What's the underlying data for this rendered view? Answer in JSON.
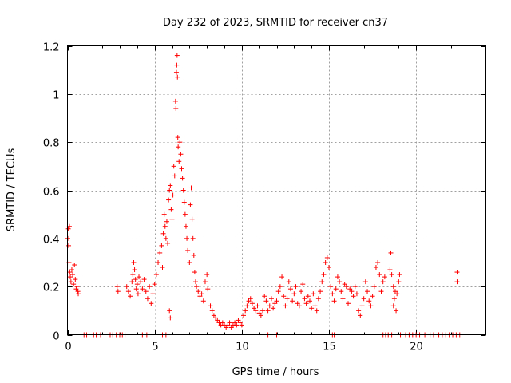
{
  "chart_data": {
    "type": "scatter",
    "title": "Day 232 of 2023, SRMTID for receiver cn37",
    "xlabel": "GPS time / hours",
    "ylabel": "SRMTID / TECUs",
    "xlim": [
      0,
      24
    ],
    "ylim": [
      0,
      1.2
    ],
    "grid": true,
    "marker": "+",
    "color": "#ff0000",
    "x_ticks": [
      0,
      5,
      10,
      15,
      20
    ],
    "y_ticks": [
      0,
      0.2,
      0.4,
      0.6,
      0.8,
      1.0,
      1.2
    ],
    "x_tick_labels": [
      "0",
      "5",
      "10",
      "15",
      "20"
    ],
    "y_tick_labels": [
      "0",
      "0.2",
      "0.4",
      "0.6",
      "0.8",
      "1",
      "1.2"
    ],
    "series": [
      {
        "name": "cn37",
        "points": [
          [
            0.02,
            0.4
          ],
          [
            0.05,
            0.44
          ],
          [
            0.07,
            0.37
          ],
          [
            0.09,
            0.3
          ],
          [
            0.11,
            0.45
          ],
          [
            0.13,
            0.26
          ],
          [
            0.16,
            0.24
          ],
          [
            0.2,
            0.22
          ],
          [
            0.25,
            0.27
          ],
          [
            0.3,
            0.25
          ],
          [
            0.35,
            0.21
          ],
          [
            0.4,
            0.29
          ],
          [
            0.45,
            0.23
          ],
          [
            0.5,
            0.19
          ],
          [
            0.55,
            0.2
          ],
          [
            0.6,
            0.18
          ],
          [
            0.62,
            0.17
          ],
          [
            0.95,
            0
          ],
          [
            1.1,
            0
          ],
          [
            1.5,
            0
          ],
          [
            1.65,
            0
          ],
          [
            1.9,
            0
          ],
          [
            2.45,
            0
          ],
          [
            2.6,
            0
          ],
          [
            2.8,
            0
          ],
          [
            3.0,
            0
          ],
          [
            3.15,
            0
          ],
          [
            3.3,
            0
          ],
          [
            2.85,
            0.2
          ],
          [
            2.9,
            0.18
          ],
          [
            3.4,
            0.2
          ],
          [
            3.5,
            0.18
          ],
          [
            3.6,
            0.16
          ],
          [
            3.7,
            0.22
          ],
          [
            3.75,
            0.25
          ],
          [
            3.8,
            0.3
          ],
          [
            3.85,
            0.27
          ],
          [
            3.9,
            0.23
          ],
          [
            3.95,
            0.19
          ],
          [
            4.0,
            0.21
          ],
          [
            4.05,
            0.17
          ],
          [
            4.1,
            0.24
          ],
          [
            4.2,
            0.22
          ],
          [
            4.3,
            0.19
          ],
          [
            4.4,
            0.23
          ],
          [
            4.5,
            0.18
          ],
          [
            4.6,
            0.15
          ],
          [
            4.7,
            0.2
          ],
          [
            4.8,
            0.13
          ],
          [
            4.9,
            0.17
          ],
          [
            5.0,
            0.21
          ],
          [
            4.3,
            0
          ],
          [
            4.55,
            0
          ],
          [
            5.45,
            0
          ],
          [
            5.65,
            0
          ],
          [
            5.1,
            0.25
          ],
          [
            5.2,
            0.3
          ],
          [
            5.3,
            0.34
          ],
          [
            5.4,
            0.37
          ],
          [
            5.45,
            0.28
          ],
          [
            5.5,
            0.42
          ],
          [
            5.55,
            0.5
          ],
          [
            5.6,
            0.45
          ],
          [
            5.65,
            0.4
          ],
          [
            5.7,
            0.47
          ],
          [
            5.75,
            0.38
          ],
          [
            5.8,
            0.56
          ],
          [
            5.85,
            0.6
          ],
          [
            5.9,
            0.62
          ],
          [
            5.95,
            0.52
          ],
          [
            6.0,
            0.48
          ],
          [
            6.05,
            0.58
          ],
          [
            6.1,
            0.7
          ],
          [
            6.15,
            0.66
          ],
          [
            6.2,
            0.97
          ],
          [
            6.22,
            0.94
          ],
          [
            6.25,
            1.09
          ],
          [
            6.27,
            1.12
          ],
          [
            6.29,
            1.16
          ],
          [
            6.31,
            1.07
          ],
          [
            6.33,
            0.82
          ],
          [
            6.35,
            0.78
          ],
          [
            6.4,
            0.72
          ],
          [
            6.45,
            0.8
          ],
          [
            6.5,
            0.75
          ],
          [
            6.55,
            0.69
          ],
          [
            6.6,
            0.65
          ],
          [
            6.65,
            0.6
          ],
          [
            6.7,
            0.55
          ],
          [
            6.75,
            0.5
          ],
          [
            6.8,
            0.45
          ],
          [
            6.85,
            0.4
          ],
          [
            6.9,
            0.35
          ],
          [
            7.0,
            0.3
          ],
          [
            7.05,
            0.54
          ],
          [
            7.1,
            0.61
          ],
          [
            7.15,
            0.48
          ],
          [
            7.2,
            0.4
          ],
          [
            7.25,
            0.33
          ],
          [
            7.3,
            0.26
          ],
          [
            7.35,
            0.22
          ],
          [
            7.4,
            0.2
          ],
          [
            7.5,
            0.18
          ],
          [
            7.6,
            0.16
          ],
          [
            7.7,
            0.17
          ],
          [
            7.8,
            0.14
          ],
          [
            7.9,
            0.22
          ],
          [
            8.0,
            0.25
          ],
          [
            8.05,
            0.19
          ],
          [
            5.85,
            0.1
          ],
          [
            5.9,
            0.07
          ],
          [
            8.2,
            0.12
          ],
          [
            8.3,
            0.1
          ],
          [
            8.4,
            0.08
          ],
          [
            8.5,
            0.07
          ],
          [
            8.6,
            0.06
          ],
          [
            8.7,
            0.05
          ],
          [
            8.8,
            0.04
          ],
          [
            8.9,
            0.05
          ],
          [
            9.0,
            0.04
          ],
          [
            9.1,
            0.03
          ],
          [
            9.2,
            0.04
          ],
          [
            9.3,
            0.05
          ],
          [
            9.4,
            0.03
          ],
          [
            9.5,
            0.04
          ],
          [
            9.6,
            0.05
          ],
          [
            9.7,
            0.04
          ],
          [
            9.8,
            0.06
          ],
          [
            9.9,
            0.05
          ],
          [
            10.0,
            0.04
          ],
          [
            10.1,
            0.08
          ],
          [
            10.2,
            0.1
          ],
          [
            10.3,
            0.12
          ],
          [
            10.4,
            0.14
          ],
          [
            10.5,
            0.15
          ],
          [
            10.6,
            0.13
          ],
          [
            10.7,
            0.11
          ],
          [
            10.8,
            0.1
          ],
          [
            10.9,
            0.12
          ],
          [
            11.0,
            0.09
          ],
          [
            11.1,
            0.08
          ],
          [
            11.2,
            0.1
          ],
          [
            11.3,
            0.16
          ],
          [
            11.4,
            0.14
          ],
          [
            11.5,
            0.1
          ],
          [
            11.6,
            0.12
          ],
          [
            11.7,
            0.15
          ],
          [
            11.8,
            0.11
          ],
          [
            11.9,
            0.13
          ],
          [
            12.0,
            0.14
          ],
          [
            12.1,
            0.18
          ],
          [
            12.2,
            0.2
          ],
          [
            12.3,
            0.24
          ],
          [
            12.4,
            0.16
          ],
          [
            12.5,
            0.12
          ],
          [
            12.6,
            0.15
          ],
          [
            12.7,
            0.22
          ],
          [
            12.8,
            0.19
          ],
          [
            12.9,
            0.14
          ],
          [
            13.0,
            0.17
          ],
          [
            13.1,
            0.2
          ],
          [
            13.2,
            0.13
          ],
          [
            13.3,
            0.12
          ],
          [
            13.4,
            0.18
          ],
          [
            13.5,
            0.21
          ],
          [
            13.6,
            0.15
          ],
          [
            13.7,
            0.13
          ],
          [
            13.8,
            0.16
          ],
          [
            13.9,
            0.14
          ],
          [
            14.0,
            0.11
          ],
          [
            14.1,
            0.17
          ],
          [
            14.2,
            0.12
          ],
          [
            14.3,
            0.1
          ],
          [
            14.4,
            0.15
          ],
          [
            14.5,
            0.18
          ],
          [
            14.6,
            0.22
          ],
          [
            14.7,
            0.25
          ],
          [
            14.8,
            0.3
          ],
          [
            14.9,
            0.32
          ],
          [
            15.0,
            0.28
          ],
          [
            11.5,
            0
          ],
          [
            12.0,
            0
          ],
          [
            15.2,
            0
          ],
          [
            15.3,
            0
          ],
          [
            15.1,
            0.2
          ],
          [
            15.2,
            0.17
          ],
          [
            15.3,
            0.14
          ],
          [
            15.4,
            0.19
          ],
          [
            15.5,
            0.24
          ],
          [
            15.6,
            0.22
          ],
          [
            15.7,
            0.18
          ],
          [
            15.8,
            0.15
          ],
          [
            15.9,
            0.21
          ],
          [
            16.0,
            0.2
          ],
          [
            16.1,
            0.13
          ],
          [
            16.2,
            0.19
          ],
          [
            16.3,
            0.18
          ],
          [
            16.4,
            0.16
          ],
          [
            16.5,
            0.2
          ],
          [
            16.6,
            0.17
          ],
          [
            16.7,
            0.1
          ],
          [
            16.8,
            0.08
          ],
          [
            16.9,
            0.12
          ],
          [
            17.0,
            0.15
          ],
          [
            17.1,
            0.22
          ],
          [
            17.2,
            0.18
          ],
          [
            17.3,
            0.14
          ],
          [
            17.4,
            0.12
          ],
          [
            17.5,
            0.16
          ],
          [
            17.6,
            0.2
          ],
          [
            17.7,
            0.28
          ],
          [
            17.8,
            0.3
          ],
          [
            17.9,
            0.25
          ],
          [
            18.0,
            0.18
          ],
          [
            18.1,
            0.22
          ],
          [
            18.2,
            0.24
          ],
          [
            18.1,
            0
          ],
          [
            18.25,
            0
          ],
          [
            18.4,
            0
          ],
          [
            18.6,
            0
          ],
          [
            18.5,
            0.27
          ],
          [
            18.55,
            0.34
          ],
          [
            18.6,
            0.25
          ],
          [
            18.7,
            0.2
          ],
          [
            18.75,
            0.15
          ],
          [
            18.8,
            0.18
          ],
          [
            18.9,
            0.17
          ],
          [
            19.0,
            0.22
          ],
          [
            19.05,
            0.25
          ],
          [
            18.7,
            0.12
          ],
          [
            18.85,
            0.1
          ],
          [
            19.1,
            0
          ],
          [
            19.4,
            0
          ],
          [
            19.6,
            0
          ],
          [
            19.8,
            0
          ],
          [
            20.0,
            0
          ],
          [
            20.2,
            0
          ],
          [
            20.5,
            0
          ],
          [
            20.8,
            0
          ],
          [
            21.0,
            0
          ],
          [
            21.3,
            0
          ],
          [
            21.5,
            0
          ],
          [
            21.7,
            0
          ],
          [
            21.9,
            0
          ],
          [
            22.1,
            0
          ],
          [
            22.3,
            0
          ],
          [
            22.5,
            0
          ],
          [
            22.35,
            0.26
          ],
          [
            22.35,
            0.22
          ]
        ]
      }
    ]
  }
}
